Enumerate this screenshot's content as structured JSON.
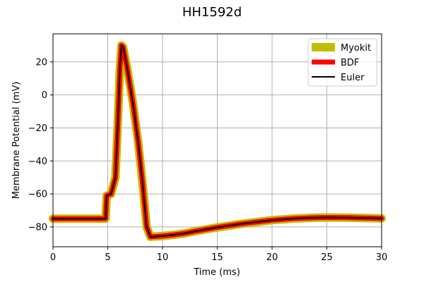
{
  "chart_data": {
    "type": "line",
    "title": "HH1592d",
    "xlabel": "Time (ms)",
    "ylabel": "Membrane Potential (mV)",
    "xlim": [
      0,
      30
    ],
    "ylim": [
      -92,
      37
    ],
    "xticks": [
      0,
      5,
      10,
      15,
      20,
      25,
      30
    ],
    "yticks": [
      20,
      0,
      -20,
      -40,
      -60,
      -80
    ],
    "grid": true,
    "legend_position": "top-right",
    "series": [
      {
        "name": "Myokit",
        "color": "#bfbf00",
        "points": [
          [
            0,
            -75
          ],
          [
            4.8,
            -75
          ],
          [
            4.9,
            -61
          ],
          [
            5.3,
            -60
          ],
          [
            5.7,
            -50
          ],
          [
            5.9,
            -20
          ],
          [
            6.1,
            15
          ],
          [
            6.25,
            30
          ],
          [
            6.4,
            29
          ],
          [
            6.8,
            15
          ],
          [
            7.3,
            -5
          ],
          [
            7.8,
            -30
          ],
          [
            8.2,
            -55
          ],
          [
            8.55,
            -80
          ],
          [
            8.9,
            -86
          ],
          [
            10,
            -85.5
          ],
          [
            11,
            -84.8
          ],
          [
            12,
            -83.9
          ],
          [
            13,
            -82.6
          ],
          [
            15,
            -80.3
          ],
          [
            17,
            -78.3
          ],
          [
            20,
            -75.9
          ],
          [
            22,
            -74.9
          ],
          [
            24,
            -74.4
          ],
          [
            25,
            -74.3
          ],
          [
            27,
            -74.4
          ],
          [
            30,
            -74.8
          ]
        ]
      },
      {
        "name": "BDF",
        "color": "#ff0000",
        "points": [
          [
            0,
            -75
          ],
          [
            4.8,
            -75
          ],
          [
            4.9,
            -61
          ],
          [
            5.3,
            -60
          ],
          [
            5.7,
            -50
          ],
          [
            5.9,
            -20
          ],
          [
            6.1,
            15
          ],
          [
            6.25,
            30
          ],
          [
            6.4,
            29
          ],
          [
            6.8,
            15
          ],
          [
            7.3,
            -5
          ],
          [
            7.8,
            -30
          ],
          [
            8.2,
            -55
          ],
          [
            8.55,
            -80
          ],
          [
            8.9,
            -86
          ],
          [
            10,
            -85.5
          ],
          [
            11,
            -84.8
          ],
          [
            12,
            -83.9
          ],
          [
            13,
            -82.6
          ],
          [
            15,
            -80.3
          ],
          [
            17,
            -78.3
          ],
          [
            20,
            -75.9
          ],
          [
            22,
            -74.9
          ],
          [
            24,
            -74.4
          ],
          [
            25,
            -74.3
          ],
          [
            27,
            -74.4
          ],
          [
            30,
            -74.8
          ]
        ]
      },
      {
        "name": "Euler",
        "color": "#000000",
        "points": [
          [
            0,
            -75
          ],
          [
            4.8,
            -75
          ],
          [
            4.9,
            -61
          ],
          [
            5.3,
            -60
          ],
          [
            5.7,
            -50
          ],
          [
            5.9,
            -20
          ],
          [
            6.1,
            15
          ],
          [
            6.25,
            30
          ],
          [
            6.4,
            29
          ],
          [
            6.8,
            15
          ],
          [
            7.3,
            -5
          ],
          [
            7.8,
            -30
          ],
          [
            8.2,
            -55
          ],
          [
            8.55,
            -80
          ],
          [
            8.9,
            -86
          ],
          [
            10,
            -85.5
          ],
          [
            11,
            -84.8
          ],
          [
            12,
            -83.9
          ],
          [
            13,
            -82.6
          ],
          [
            15,
            -80.3
          ],
          [
            17,
            -78.3
          ],
          [
            20,
            -75.9
          ],
          [
            22,
            -74.9
          ],
          [
            24,
            -74.4
          ],
          [
            25,
            -74.3
          ],
          [
            27,
            -74.4
          ],
          [
            30,
            -74.8
          ]
        ]
      }
    ]
  }
}
